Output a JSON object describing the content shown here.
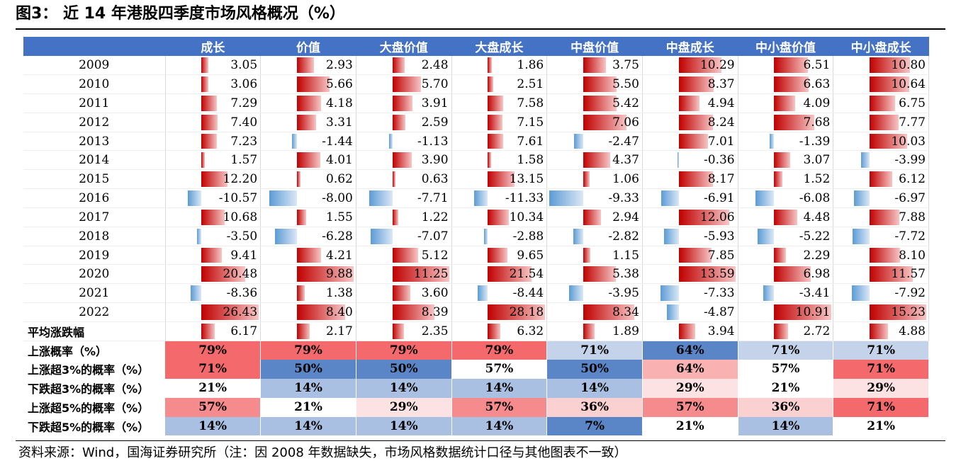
{
  "title": "图3： 近 14 年港股四季度市场风格概况（%）",
  "source": "资料来源：Wind，国海证券研究所（注：因 2008 年数据缺失，市场风格数据统计口径与其他图表不一致）",
  "headers": [
    "",
    "成长",
    "价值",
    "大盘价值",
    "大盘成长",
    "中盘价值",
    "中盘成长",
    "中小盘价值",
    "中小盘成长"
  ],
  "rows": [
    {
      "label": "2009",
      "values": [
        "3.05",
        "2.93",
        "2.48",
        "1.86",
        "3.75",
        "10.29",
        "6.51",
        "10.80"
      ]
    },
    {
      "label": "2010",
      "values": [
        "3.06",
        "5.66",
        "5.70",
        "2.51",
        "5.50",
        "8.37",
        "6.63",
        "10.64"
      ]
    },
    {
      "label": "2011",
      "values": [
        "7.29",
        "4.18",
        "3.91",
        "7.58",
        "5.42",
        "4.94",
        "4.09",
        "6.75"
      ]
    },
    {
      "label": "2012",
      "values": [
        "7.40",
        "3.31",
        "2.59",
        "7.15",
        "7.06",
        "8.24",
        "7.68",
        "7.77"
      ]
    },
    {
      "label": "2013",
      "values": [
        "7.23",
        "-1.44",
        "-1.13",
        "7.61",
        "-2.47",
        "7.01",
        "-1.39",
        "10.03"
      ]
    },
    {
      "label": "2014",
      "values": [
        "1.57",
        "4.01",
        "3.90",
        "1.58",
        "4.37",
        "-0.36",
        "3.07",
        "-3.99"
      ]
    },
    {
      "label": "2015",
      "values": [
        "12.20",
        "0.62",
        "0.63",
        "13.15",
        "1.06",
        "8.17",
        "1.52",
        "6.12"
      ]
    },
    {
      "label": "2016",
      "values": [
        "-10.57",
        "-8.00",
        "-7.71",
        "-11.33",
        "-9.33",
        "-6.91",
        "-6.08",
        "-6.97"
      ]
    },
    {
      "label": "2017",
      "values": [
        "10.68",
        "1.55",
        "1.22",
        "10.34",
        "2.94",
        "12.06",
        "4.48",
        "7.88"
      ]
    },
    {
      "label": "2018",
      "values": [
        "-3.50",
        "-6.28",
        "-7.07",
        "-2.88",
        "-2.82",
        "-5.93",
        "-5.22",
        "-7.72"
      ]
    },
    {
      "label": "2019",
      "values": [
        "9.41",
        "4.21",
        "5.12",
        "9.65",
        "1.15",
        "7.85",
        "2.29",
        "8.10"
      ]
    },
    {
      "label": "2020",
      "values": [
        "20.48",
        "9.88",
        "11.25",
        "21.54",
        "5.38",
        "13.59",
        "6.98",
        "11.57"
      ]
    },
    {
      "label": "2021",
      "values": [
        "-8.36",
        "1.38",
        "3.60",
        "-8.44",
        "-3.95",
        "-7.33",
        "-3.41",
        "-7.92"
      ]
    },
    {
      "label": "2022",
      "values": [
        "26.43",
        "8.40",
        "8.39",
        "28.18",
        "8.34",
        "-4.87",
        "10.91",
        "15.23"
      ]
    },
    {
      "label": "平均涨跌幅",
      "bold": true,
      "values": [
        "6.17",
        "2.17",
        "2.35",
        "6.32",
        "1.89",
        "3.94",
        "2.72",
        "4.88"
      ]
    }
  ],
  "prob_rows": [
    {
      "label": "上涨概率（%）",
      "values": [
        "79%",
        "79%",
        "79%",
        "79%",
        "71%",
        "64%",
        "71%",
        "71%"
      ],
      "colors": [
        "#f4696b",
        "#f4696b",
        "#f4696b",
        "#f4696b",
        "#c5d3ea",
        "#5a86c8",
        "#c5d3ea",
        "#c5d3ea"
      ]
    },
    {
      "label": "上涨超3%的概率（%）",
      "values": [
        "71%",
        "50%",
        "50%",
        "57%",
        "50%",
        "64%",
        "57%",
        "71%"
      ],
      "colors": [
        "#f4696b",
        "#5a86c8",
        "#5a86c8",
        "#ffffff",
        "#5a86c8",
        "#f9b1b2",
        "#ffffff",
        "#f4696b"
      ]
    },
    {
      "label": "下跌超3%的概率（%）",
      "values": [
        "21%",
        "14%",
        "14%",
        "14%",
        "14%",
        "29%",
        "21%",
        "29%"
      ],
      "colors": [
        "#ffffff",
        "#a9c0e2",
        "#a9c0e2",
        "#a9c0e2",
        "#a9c0e2",
        "#fde2e3",
        "#ffffff",
        "#fde2e3"
      ]
    },
    {
      "label": "上涨超5%的概率（%）",
      "values": [
        "57%",
        "21%",
        "29%",
        "57%",
        "36%",
        "57%",
        "36%",
        "71%"
      ],
      "colors": [
        "#f68b8d",
        "#ffffff",
        "#fde2e3",
        "#f68b8d",
        "#fbd0d1",
        "#f68b8d",
        "#fbd0d1",
        "#f4696b"
      ]
    },
    {
      "label": "下跌超5%的概率（%）",
      "values": [
        "14%",
        "14%",
        "14%",
        "14%",
        "7%",
        "21%",
        "14%",
        "21%"
      ],
      "colors": [
        "#a9c0e2",
        "#a9c0e2",
        "#a9c0e2",
        "#a9c0e2",
        "#5a86c8",
        "#ffffff",
        "#a9c0e2",
        "#ffffff"
      ]
    }
  ],
  "colors": {
    "header": "#4472C4",
    "pos_bar": "#c00000",
    "neg_bar": "#5b9bd5"
  }
}
